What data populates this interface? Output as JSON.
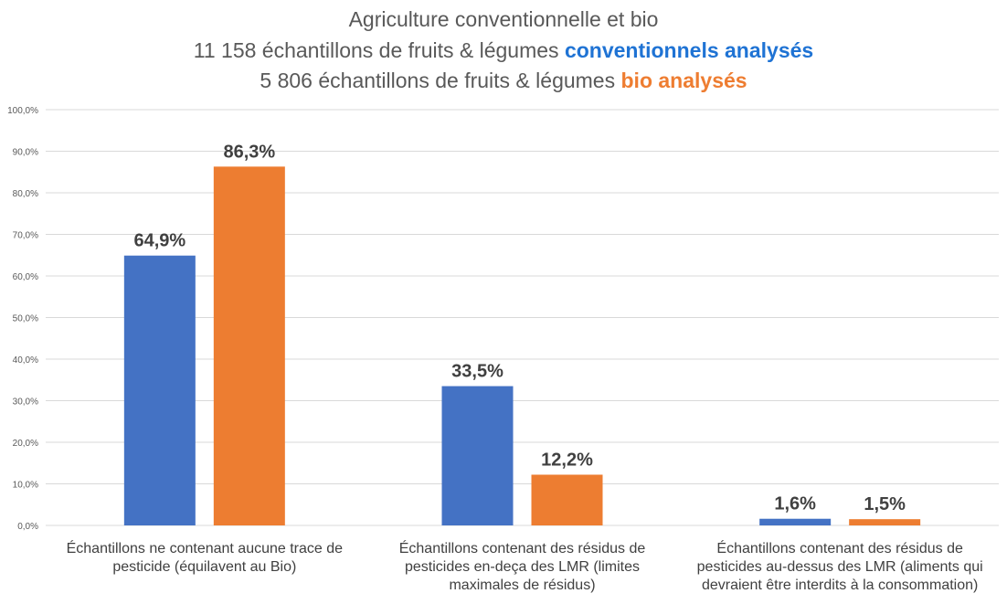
{
  "title": {
    "line1": "Agriculture conventionnelle et bio",
    "line2_prefix": "11 158 échantillons de fruits & légumes",
    "line2_highlight": "conventionnels analysés",
    "line3_prefix": "5 806 échantillons de fruits & légumes",
    "line3_highlight": "bio analysés"
  },
  "colors": {
    "conventionnel": "#4472c4",
    "bio": "#ed7d31",
    "grid": "#d9d9d9",
    "text": "#595959",
    "label": "#404040"
  },
  "chart_data": {
    "type": "bar",
    "categories": [
      "Échantillons ne contenant aucune trace de pesticide (équilavent au Bio)",
      "Échantillons contenant des résidus de pesticides en-deça des LMR (limites maximales de résidus)",
      "Échantillons contenant des résidus de pesticides au-dessus des LMR (aliments qui devraient être interdits à la consommation)"
    ],
    "category_lines": [
      [
        "Échantillons ne contenant aucune trace de",
        "pesticide (équilavent au Bio)"
      ],
      [
        "Échantillons contenant des résidus de",
        "pesticides en-deça des LMR (limites",
        "maximales de résidus)"
      ],
      [
        "Échantillons contenant des résidus de",
        "pesticides au-dessus des LMR (aliments qui",
        "devraient être interdits à la consommation)"
      ]
    ],
    "series": [
      {
        "values": [
          64.9,
          33.5,
          1.6
        ],
        "labels": [
          "64,9%",
          "33,5%",
          "1,6%"
        ],
        "color": "#4472c4"
      },
      {
        "values": [
          86.3,
          12.2,
          1.5
        ],
        "labels": [
          "86,3%",
          "12,2%",
          "1,5%"
        ],
        "color": "#ed7d31"
      }
    ],
    "yticks": [
      "0,0%",
      "10,0%",
      "20,0%",
      "30,0%",
      "40,0%",
      "50,0%",
      "60,0%",
      "70,0%",
      "80,0%",
      "90,0%",
      "100,0%"
    ],
    "ylim": [
      0,
      100
    ],
    "grid": true,
    "legend": "none"
  }
}
